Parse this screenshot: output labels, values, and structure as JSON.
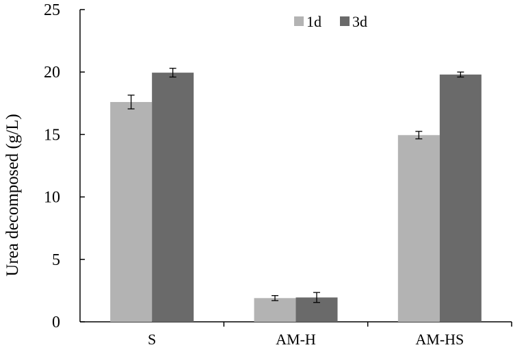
{
  "chart_data": {
    "type": "bar",
    "ylabel": "Urea decomposed (g/L)",
    "xlabel": "",
    "ylim": [
      0,
      25
    ],
    "yticks": [
      "0",
      "5",
      "10",
      "15",
      "20",
      "25"
    ],
    "categories": [
      "S",
      "AM-H",
      "AM-HS"
    ],
    "legend_position": "top-center",
    "grid": false,
    "series": [
      {
        "name": "1d",
        "color": "#b3b3b3",
        "values": [
          17.6,
          1.9,
          14.95
        ],
        "errors": [
          0.55,
          0.2,
          0.3
        ]
      },
      {
        "name": "3d",
        "color": "#6a6a6a",
        "values": [
          19.95,
          1.95,
          19.8
        ],
        "errors": [
          0.35,
          0.4,
          0.2
        ]
      }
    ]
  }
}
